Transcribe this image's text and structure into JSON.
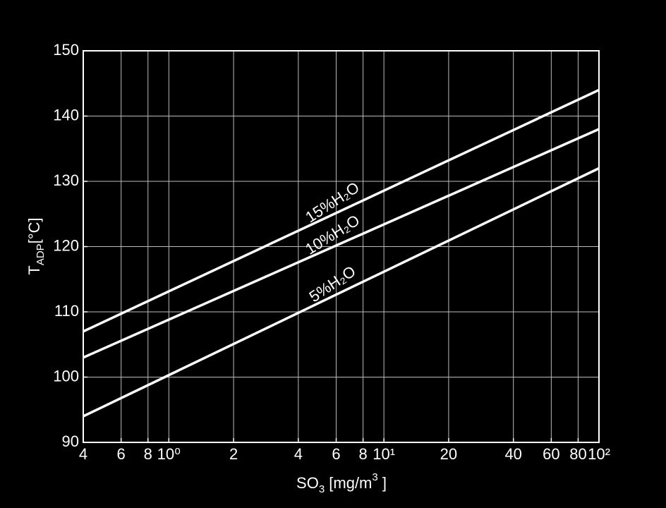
{
  "chart_data": {
    "type": "line",
    "xlabel": [
      "SO",
      "3",
      " [mg/m",
      "3",
      " ]"
    ],
    "ylabel": [
      "T",
      "ADP",
      "[°C]"
    ],
    "x": [
      0.4,
      100
    ],
    "series": [
      {
        "name": "15%H₂O",
        "color": "#ffffff",
        "values": [
          107,
          144
        ]
      },
      {
        "name": "10%H₂O",
        "color": "#ffffff",
        "values": [
          103,
          138
        ]
      },
      {
        "name": "5%H₂O",
        "color": "#ffffff",
        "values": [
          94,
          132
        ]
      }
    ],
    "xscale": "log",
    "xlim": [
      0.4,
      100
    ],
    "xticks": [
      {
        "value": 0.4,
        "label": "4"
      },
      {
        "value": 0.6,
        "label": "6"
      },
      {
        "value": 0.8,
        "label": "8"
      },
      {
        "value": 1,
        "label": "10⁰"
      },
      2,
      4,
      6,
      8,
      {
        "value": 10,
        "label": "10¹"
      },
      20,
      40,
      60,
      80,
      {
        "value": 100,
        "label": "10²"
      }
    ],
    "ylim": [
      90,
      150
    ],
    "yticks": [
      90,
      100,
      110,
      120,
      130,
      140,
      150
    ],
    "grid": true
  }
}
